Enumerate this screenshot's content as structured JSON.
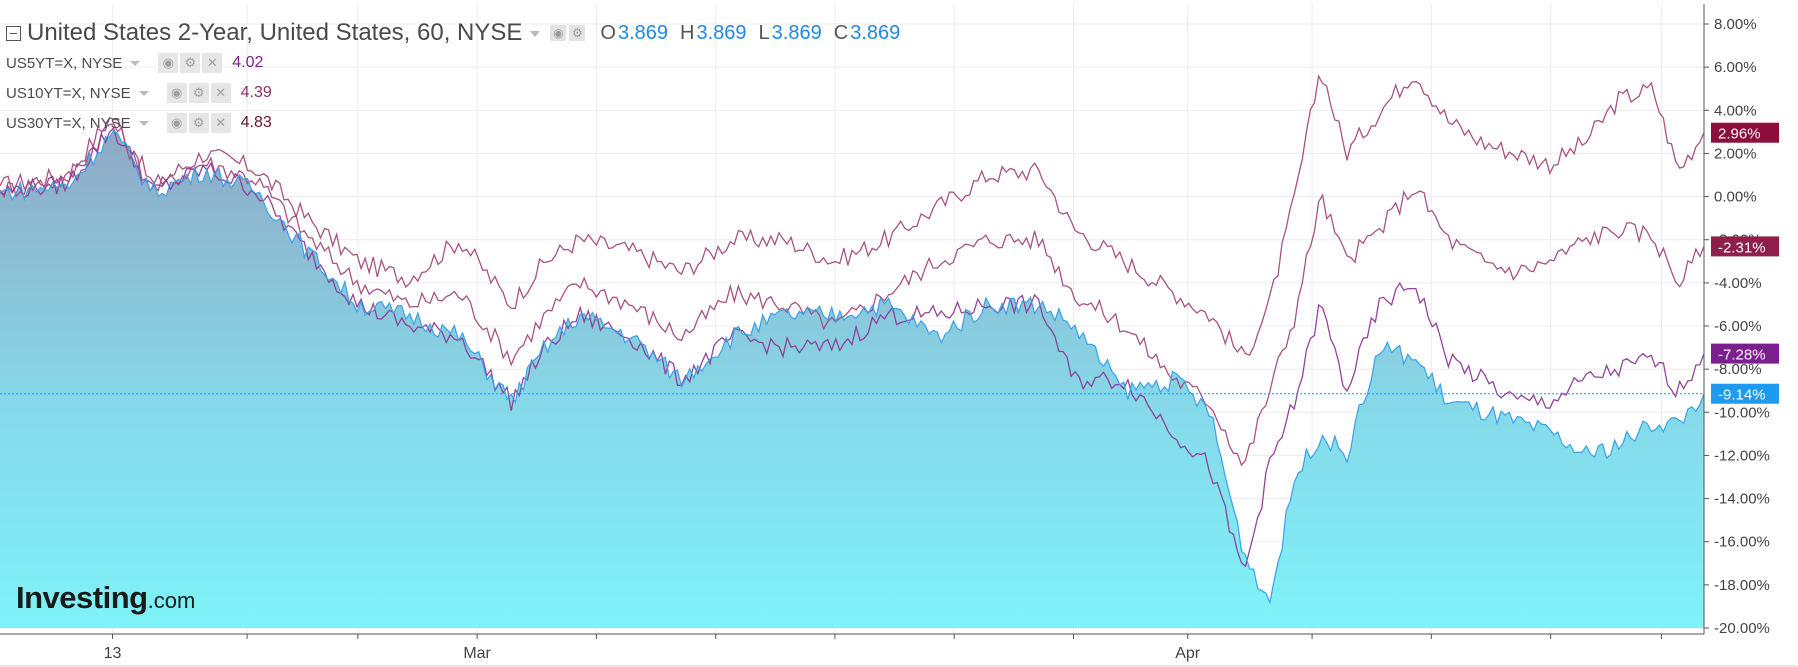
{
  "legend": {
    "main_title": "United States 2-Year, United States, 60, NYSE",
    "ohlc": [
      {
        "letter": "O",
        "value": "3.869"
      },
      {
        "letter": "H",
        "value": "3.869"
      },
      {
        "letter": "L",
        "value": "3.869"
      },
      {
        "letter": "C",
        "value": "3.869"
      }
    ],
    "symbols": [
      {
        "name": "US5YT=X, NYSE",
        "value": "4.02",
        "color": "#7b1f8f"
      },
      {
        "name": "US10YT=X, NYSE",
        "value": "4.39",
        "color": "#8e2a6a"
      },
      {
        "name": "US30YT=X, NYSE",
        "value": "4.83",
        "color": "#6e1030"
      }
    ]
  },
  "logo": {
    "main": "Investing",
    "suffix": ".com"
  },
  "chart_data": {
    "type": "area",
    "title": "United States 2-Year, United States, 60, NYSE",
    "y_unit": "%",
    "ylim": [
      -20,
      8
    ],
    "y_ticks": [
      "8.00%",
      "6.00%",
      "4.00%",
      "2.00%",
      "0.00%",
      "-2.00%",
      "-4.00%",
      "-6.00%",
      "-8.00%",
      "-10.00%",
      "-12.00%",
      "-14.00%",
      "-16.00%",
      "-18.00%",
      "-20.00%"
    ],
    "y_tick_values": [
      8,
      6,
      4,
      2,
      0,
      -2,
      -4,
      -6,
      -8,
      -10,
      -12,
      -14,
      -16,
      -18,
      -20
    ],
    "x_labels": [
      "13",
      "Mar",
      "Apr"
    ],
    "x_label_positions": [
      0.066,
      0.28,
      0.697
    ],
    "grid": true,
    "series": [
      {
        "name": "US30YT=X, NYSE",
        "style": "line",
        "color": "#a34a7c",
        "last_label": "2.96%",
        "label_bg": "#8b0f3a",
        "x": [
          0,
          0.04,
          0.066,
          0.09,
          0.12,
          0.15,
          0.18,
          0.21,
          0.24,
          0.27,
          0.3,
          0.32,
          0.34,
          0.37,
          0.4,
          0.43,
          0.46,
          0.49,
          0.52,
          0.55,
          0.58,
          0.61,
          0.63,
          0.66,
          0.69,
          0.71,
          0.73,
          0.745,
          0.76,
          0.775,
          0.79,
          0.81,
          0.83,
          0.85,
          0.87,
          0.89,
          0.91,
          0.93,
          0.95,
          0.97,
          0.985,
          1.0
        ],
        "y": [
          0.5,
          1.0,
          3.8,
          0.5,
          2.0,
          1.3,
          -1.0,
          -3.0,
          -3.8,
          -2.0,
          -5.0,
          -3.0,
          -2.0,
          -2.5,
          -3.5,
          -2.0,
          -2.0,
          -3.0,
          -2.0,
          -0.5,
          1.0,
          1.2,
          -1.5,
          -3.0,
          -4.5,
          -5.5,
          -7.5,
          -5.0,
          0.0,
          6.0,
          2.0,
          4.0,
          5.8,
          3.5,
          2.5,
          2.0,
          1.5,
          2.5,
          4.5,
          5.0,
          1.2,
          2.96
        ]
      },
      {
        "name": "US10YT=X, NYSE",
        "style": "line",
        "color": "#a34a7c",
        "last_label": "-2.31%",
        "label_bg": "#8e1f4a",
        "x": [
          0,
          0.04,
          0.066,
          0.09,
          0.12,
          0.15,
          0.18,
          0.21,
          0.24,
          0.27,
          0.3,
          0.32,
          0.34,
          0.37,
          0.4,
          0.43,
          0.46,
          0.49,
          0.52,
          0.55,
          0.58,
          0.61,
          0.63,
          0.66,
          0.69,
          0.71,
          0.73,
          0.745,
          0.76,
          0.775,
          0.79,
          0.81,
          0.83,
          0.85,
          0.87,
          0.89,
          0.91,
          0.93,
          0.95,
          0.97,
          0.985,
          1.0
        ],
        "y": [
          0.3,
          0.8,
          3.5,
          0.3,
          1.6,
          0.8,
          -1.8,
          -4.0,
          -5.0,
          -4.5,
          -7.5,
          -5.5,
          -4.0,
          -5.0,
          -6.5,
          -4.5,
          -5.0,
          -6.0,
          -4.5,
          -3.0,
          -2.0,
          -2.0,
          -4.5,
          -6.0,
          -8.5,
          -9.5,
          -12.5,
          -9.0,
          -5.5,
          0.0,
          -3.0,
          -1.5,
          0.5,
          -2.0,
          -3.0,
          -3.5,
          -3.0,
          -2.0,
          -1.5,
          -1.8,
          -4.0,
          -2.31
        ]
      },
      {
        "name": "US5YT=X, NYSE",
        "style": "line",
        "color": "#8e3a94",
        "last_label": "-7.28%",
        "label_bg": "#7b1f8f",
        "x": [
          0,
          0.04,
          0.066,
          0.09,
          0.12,
          0.15,
          0.18,
          0.21,
          0.24,
          0.27,
          0.3,
          0.32,
          0.34,
          0.37,
          0.4,
          0.43,
          0.46,
          0.49,
          0.52,
          0.55,
          0.58,
          0.61,
          0.63,
          0.66,
          0.69,
          0.71,
          0.73,
          0.745,
          0.76,
          0.775,
          0.79,
          0.81,
          0.83,
          0.85,
          0.87,
          0.89,
          0.91,
          0.93,
          0.95,
          0.97,
          0.985,
          1.0
        ],
        "y": [
          0.2,
          0.6,
          3.2,
          0.2,
          1.3,
          0.3,
          -2.5,
          -5.0,
          -6.0,
          -6.5,
          -9.5,
          -7.0,
          -5.5,
          -6.5,
          -8.5,
          -6.5,
          -7.0,
          -7.0,
          -5.5,
          -5.5,
          -5.0,
          -5.0,
          -8.5,
          -8.5,
          -11.0,
          -12.5,
          -17.5,
          -12.5,
          -9.5,
          -5.0,
          -9.0,
          -5.0,
          -4.0,
          -7.5,
          -8.5,
          -9.5,
          -9.5,
          -8.5,
          -8.0,
          -7.5,
          -9.0,
          -7.28
        ]
      },
      {
        "name": "United States 2-Year, United States, 60, NYSE",
        "style": "area",
        "color": "#3aa0e8",
        "last_label": "-9.14%",
        "label_bg": "#1e9bf0",
        "x": [
          0,
          0.04,
          0.066,
          0.09,
          0.12,
          0.15,
          0.18,
          0.21,
          0.24,
          0.27,
          0.3,
          0.32,
          0.34,
          0.37,
          0.4,
          0.43,
          0.46,
          0.49,
          0.52,
          0.55,
          0.58,
          0.61,
          0.63,
          0.66,
          0.69,
          0.71,
          0.73,
          0.745,
          0.76,
          0.775,
          0.79,
          0.81,
          0.83,
          0.85,
          0.87,
          0.89,
          0.91,
          0.93,
          0.95,
          0.97,
          0.985,
          1.0
        ],
        "y": [
          0.2,
          0.5,
          3.0,
          0.2,
          1.2,
          0.3,
          -2.5,
          -5.0,
          -5.5,
          -6.5,
          -9.5,
          -7.0,
          -5.5,
          -6.5,
          -8.5,
          -6.5,
          -5.5,
          -5.5,
          -5.0,
          -6.5,
          -5.0,
          -5.0,
          -6.0,
          -9.0,
          -8.5,
          -10.0,
          -16.5,
          -18.8,
          -13.0,
          -11.0,
          -12.0,
          -7.0,
          -7.5,
          -9.5,
          -10.0,
          -10.5,
          -11.0,
          -12.0,
          -11.5,
          -10.5,
          -10.5,
          -9.14
        ]
      }
    ],
    "reference_line": -9.14
  }
}
